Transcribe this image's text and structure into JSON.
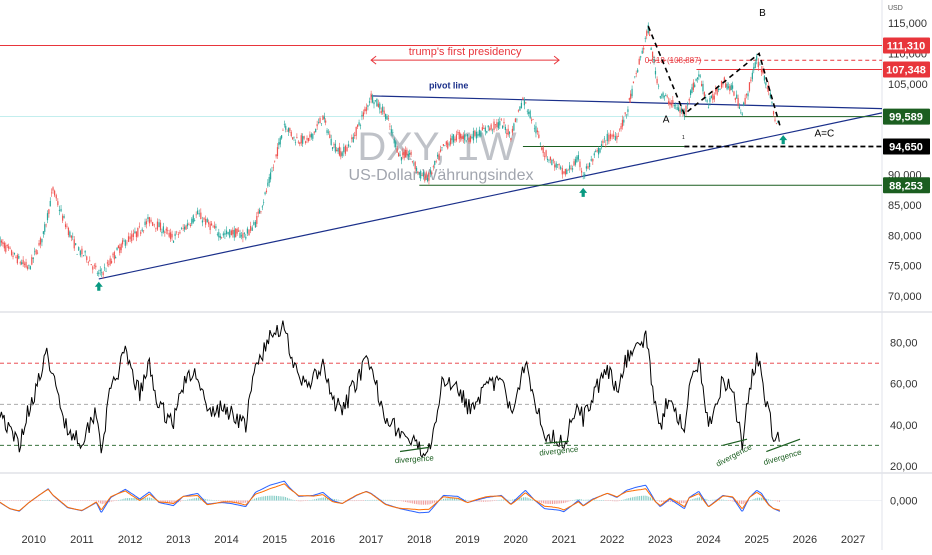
{
  "chart_data": [
    {
      "type": "candlestick",
      "panel": "price",
      "watermark_symbol": "DXY, 1W",
      "watermark_name": "US-Dollar Währungsindex",
      "currency_label": "USD",
      "ylim": [
        68000,
        118000
      ],
      "y_ticks": [
        70000,
        75000,
        80000,
        85000,
        90000,
        95000,
        100000,
        105000,
        110000,
        115000
      ],
      "y_tick_labels": [
        "70,000",
        "75,000",
        "80,000",
        "85,000",
        "90,000",
        "95,000",
        "100,000",
        "105,000",
        "110,000",
        "115,000"
      ],
      "x_ticks": [
        2010,
        2011,
        2012,
        2013,
        2014,
        2015,
        2016,
        2017,
        2018,
        2019,
        2020,
        2021,
        2022,
        2023,
        2024,
        2025,
        2026,
        2027
      ],
      "x_tick_labels": [
        "2010",
        "2011",
        "2012",
        "2013",
        "2014",
        "2015",
        "2016",
        "2017",
        "2018",
        "2019",
        "2020",
        "2021",
        "2022",
        "2023",
        "2024",
        "2025",
        "2026",
        "2027"
      ],
      "xlim": [
        2009.3,
        2027.6
      ],
      "series": [
        {
          "values": [
            [
              2009.3,
              79000
            ],
            [
              2009.6,
              76500
            ],
            [
              2009.9,
              74500
            ],
            [
              2010.2,
              80000
            ],
            [
              2010.4,
              87500
            ],
            [
              2010.6,
              83000
            ],
            [
              2010.9,
              77500
            ],
            [
              2011.1,
              76500
            ],
            [
              2011.35,
              73500
            ],
            [
              2011.5,
              74500
            ],
            [
              2011.7,
              77000
            ],
            [
              2011.9,
              79000
            ],
            [
              2012.1,
              80000
            ],
            [
              2012.4,
              82500
            ],
            [
              2012.6,
              81500
            ],
            [
              2012.9,
              79500
            ],
            [
              2013.1,
              81000
            ],
            [
              2013.4,
              83500
            ],
            [
              2013.6,
              82000
            ],
            [
              2013.9,
              80000
            ],
            [
              2014.1,
              80500
            ],
            [
              2014.4,
              80000
            ],
            [
              2014.6,
              82000
            ],
            [
              2014.8,
              86500
            ],
            [
              2015.0,
              92000
            ],
            [
              2015.2,
              98500
            ],
            [
              2015.4,
              96000
            ],
            [
              2015.7,
              95500
            ],
            [
              2016.0,
              99500
            ],
            [
              2016.2,
              95000
            ],
            [
              2016.4,
              93500
            ],
            [
              2016.6,
              95500
            ],
            [
              2016.9,
              101000
            ],
            [
              2017.0,
              103000
            ],
            [
              2017.3,
              100000
            ],
            [
              2017.6,
              93000
            ],
            [
              2017.8,
              93500
            ],
            [
              2018.0,
              90000
            ],
            [
              2018.2,
              89500
            ],
            [
              2018.5,
              94500
            ],
            [
              2018.8,
              96500
            ],
            [
              2019.0,
              96000
            ],
            [
              2019.4,
              97500
            ],
            [
              2019.7,
              98500
            ],
            [
              2019.9,
              96500
            ],
            [
              2020.15,
              102500
            ],
            [
              2020.3,
              100000
            ],
            [
              2020.6,
              93500
            ],
            [
              2020.9,
              91000
            ],
            [
              2021.0,
              90000
            ],
            [
              2021.3,
              92500
            ],
            [
              2021.4,
              90000
            ],
            [
              2021.6,
              92500
            ],
            [
              2021.9,
              96000
            ],
            [
              2022.1,
              96500
            ],
            [
              2022.3,
              100000
            ],
            [
              2022.5,
              106500
            ],
            [
              2022.75,
              114000
            ],
            [
              2022.9,
              107000
            ],
            [
              2023.0,
              103500
            ],
            [
              2023.2,
              102000
            ],
            [
              2023.5,
              100000
            ],
            [
              2023.6,
              103000
            ],
            [
              2023.8,
              106500
            ],
            [
              2024.0,
              101500
            ],
            [
              2024.3,
              105500
            ],
            [
              2024.5,
              104000
            ],
            [
              2024.7,
              100500
            ],
            [
              2024.85,
              104500
            ],
            [
              2025.0,
              109000
            ],
            [
              2025.1,
              107500
            ],
            [
              2025.25,
              104000
            ],
            [
              2025.35,
              100000
            ],
            [
              2025.5,
              97500
            ]
          ]
        }
      ],
      "horizontal_levels": [
        {
          "value": 111310,
          "label": "111,310",
          "color": "#e8353b"
        },
        {
          "value": 108887,
          "label": "0,618 (108,887)",
          "color": "#e8353b",
          "dashed": true
        },
        {
          "value": 107348,
          "label": "107,348",
          "color": "#e8353b"
        },
        {
          "value": 99589,
          "label": "99,589",
          "color": "#1b5e20"
        },
        {
          "value": 94650,
          "label": "94,650",
          "color": "#1b5e20",
          "dashed": true
        },
        {
          "value": 88253,
          "label": "88,253",
          "color": "#1b5e20"
        }
      ],
      "annotations": [
        {
          "text": "trump's first presidency",
          "color": "#e8353b"
        },
        {
          "text": "pivot line",
          "color": "#1a2f8a"
        },
        {
          "text": "A",
          "color": "#000000"
        },
        {
          "text": "B",
          "color": "#000000"
        },
        {
          "text": "A=C",
          "color": "#000000"
        },
        {
          "text": "1",
          "color": "#000000"
        }
      ]
    },
    {
      "type": "line",
      "panel": "rsi",
      "ylim": [
        18,
        92
      ],
      "y_ticks": [
        20,
        40,
        60,
        80
      ],
      "y_tick_labels": [
        "20,00",
        "40,00",
        "60,00",
        "80,00"
      ],
      "levels": [
        70,
        50,
        30
      ],
      "series": [
        {
          "values": [
            [
              2009.3,
              48
            ],
            [
              2009.5,
              36
            ],
            [
              2009.7,
              31
            ],
            [
              2009.9,
              48
            ],
            [
              2010.3,
              75
            ],
            [
              2010.4,
              62
            ],
            [
              2010.7,
              38
            ],
            [
              2011.0,
              32
            ],
            [
              2011.3,
              48
            ],
            [
              2011.4,
              28
            ],
            [
              2011.6,
              58
            ],
            [
              2011.9,
              74
            ],
            [
              2012.2,
              55
            ],
            [
              2012.4,
              69
            ],
            [
              2012.6,
              48
            ],
            [
              2012.9,
              42
            ],
            [
              2013.1,
              60
            ],
            [
              2013.4,
              66
            ],
            [
              2013.6,
              45
            ],
            [
              2013.9,
              48
            ],
            [
              2014.1,
              46
            ],
            [
              2014.4,
              40
            ],
            [
              2014.6,
              68
            ],
            [
              2014.9,
              82
            ],
            [
              2015.2,
              90
            ],
            [
              2015.3,
              78
            ],
            [
              2015.5,
              60
            ],
            [
              2015.8,
              62
            ],
            [
              2016.0,
              68
            ],
            [
              2016.2,
              52
            ],
            [
              2016.4,
              46
            ],
            [
              2016.7,
              62
            ],
            [
              2016.9,
              70
            ],
            [
              2017.0,
              66
            ],
            [
              2017.3,
              45
            ],
            [
              2017.6,
              36
            ],
            [
              2017.8,
              32
            ],
            [
              2018.0,
              28
            ],
            [
              2018.2,
              29
            ],
            [
              2018.5,
              62
            ],
            [
              2018.8,
              60
            ],
            [
              2019.0,
              48
            ],
            [
              2019.4,
              58
            ],
            [
              2019.7,
              62
            ],
            [
              2019.9,
              45
            ],
            [
              2020.2,
              72
            ],
            [
              2020.4,
              52
            ],
            [
              2020.6,
              36
            ],
            [
              2020.9,
              33
            ],
            [
              2021.0,
              30
            ],
            [
              2021.3,
              52
            ],
            [
              2021.4,
              42
            ],
            [
              2021.6,
              55
            ],
            [
              2021.9,
              66
            ],
            [
              2022.1,
              58
            ],
            [
              2022.3,
              72
            ],
            [
              2022.5,
              78
            ],
            [
              2022.7,
              82
            ],
            [
              2022.9,
              50
            ],
            [
              2023.0,
              40
            ],
            [
              2023.2,
              55
            ],
            [
              2023.5,
              36
            ],
            [
              2023.6,
              58
            ],
            [
              2023.8,
              70
            ],
            [
              2024.0,
              40
            ],
            [
              2024.3,
              62
            ],
            [
              2024.5,
              58
            ],
            [
              2024.7,
              30
            ],
            [
              2024.85,
              58
            ],
            [
              2025.0,
              72
            ],
            [
              2025.1,
              66
            ],
            [
              2025.25,
              44
            ],
            [
              2025.35,
              36
            ],
            [
              2025.5,
              30
            ]
          ]
        }
      ],
      "annotations": [
        {
          "text": "divergence",
          "color": "#1b5e20"
        },
        {
          "text": "divergence",
          "color": "#1b5e20"
        },
        {
          "text": "divergence",
          "color": "#1b5e20"
        },
        {
          "text": "divergence",
          "color": "#1b5e20"
        }
      ]
    },
    {
      "type": "line",
      "panel": "macd",
      "ylim": [
        -6,
        6
      ],
      "y_ticks": [
        0
      ],
      "y_tick_labels": [
        "0,000"
      ]
    }
  ]
}
